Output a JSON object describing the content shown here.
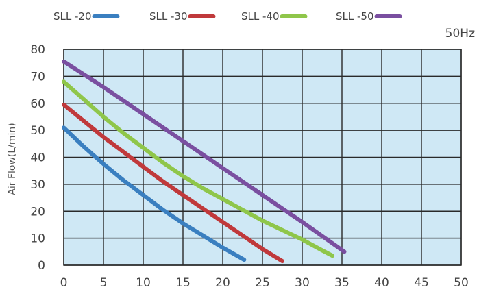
{
  "chart_data": {
    "type": "line",
    "annotation": "50Hz",
    "xlabel": "",
    "ylabel": "Air Flow(L/min)",
    "xlim": [
      0,
      50
    ],
    "ylim": [
      0,
      80
    ],
    "xticks": [
      0,
      5,
      10,
      15,
      20,
      25,
      30,
      35,
      40,
      45,
      50
    ],
    "yticks": [
      0,
      10,
      20,
      30,
      40,
      50,
      60,
      70,
      80
    ],
    "grid": true,
    "legend_position": "top",
    "plot_background": "#cfe8f5",
    "grid_color": "#2a2a2a",
    "series": [
      {
        "name": "SLL -20",
        "color": "#3a7fc0",
        "x": [
          0,
          2.5,
          5,
          7.5,
          10,
          12.5,
          15,
          17.5,
          20,
          22.7
        ],
        "y": [
          51,
          44,
          37.5,
          31.5,
          26,
          20.5,
          15.5,
          11,
          6.5,
          2
        ]
      },
      {
        "name": "SLL -30",
        "color": "#c0393b",
        "x": [
          0,
          2.5,
          5,
          7.5,
          10,
          12.5,
          15,
          17.5,
          20,
          22.5,
          25,
          27.5
        ],
        "y": [
          59.5,
          53.5,
          47.5,
          42,
          36.5,
          31,
          26,
          21,
          16,
          11,
          6,
          1.5
        ]
      },
      {
        "name": "SLL -40",
        "color": "#8fc64a",
        "x": [
          0,
          2.5,
          5,
          7.5,
          10,
          12.5,
          15,
          17.5,
          20,
          22.5,
          25,
          27.5,
          30,
          32.5,
          33.8
        ],
        "y": [
          68,
          61.5,
          55,
          49,
          43.5,
          38,
          33,
          28.5,
          24.5,
          20.5,
          16.5,
          13,
          9.5,
          5.5,
          3.5
        ]
      },
      {
        "name": "SLL -50",
        "color": "#7a4fa0",
        "x": [
          0,
          5,
          10,
          15,
          20,
          25,
          30,
          35.3
        ],
        "y": [
          75.5,
          66,
          56,
          46,
          36,
          26,
          16,
          5
        ]
      }
    ]
  }
}
